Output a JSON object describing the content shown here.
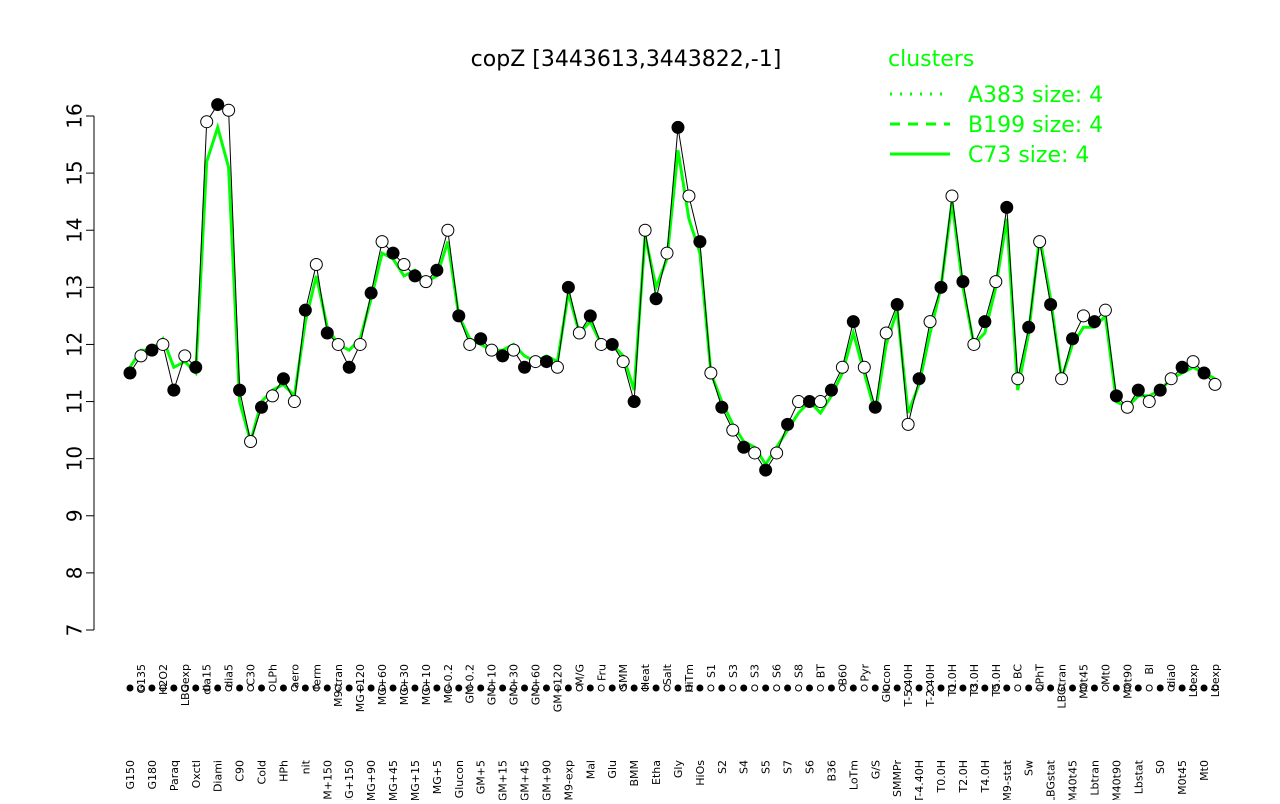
{
  "chart_data": {
    "type": "line",
    "title": "copZ [3443613,3443822,-1]",
    "xlabel": "",
    "ylabel": "",
    "ylim": [
      7,
      16.5
    ],
    "y_ticks": [
      7,
      8,
      9,
      10,
      11,
      12,
      13,
      14,
      15,
      16
    ],
    "grid": false,
    "legend": {
      "title": "clusters",
      "placement": "top-right",
      "color": "#00ff00",
      "entries": [
        {
          "label": "A383 size: 4",
          "style": "dotted"
        },
        {
          "label": "B199 size: 4",
          "style": "dashed"
        },
        {
          "label": "C73 size: 4",
          "style": "solid"
        }
      ]
    },
    "x_tick_labels": [
      "G150",
      "G135",
      "G180",
      "H2O2",
      "Paraq",
      "LBGexp",
      "Oxctl",
      "dia15",
      "Diami",
      "dia5",
      "C90",
      "C30",
      "Cold",
      "LPh",
      "HPh",
      "aero",
      "nit",
      "ferm",
      "GM+150",
      "M9-tran",
      "MG+150",
      "MG+120",
      "MG+90",
      "MG+60",
      "MG+45",
      "MG+30",
      "MG+15",
      "MG+10",
      "MG+5",
      "MG-0.2",
      "Glucon",
      "GM-0.2",
      "GM+5",
      "GM+10",
      "GM+15",
      "GM+30",
      "GM+45",
      "GM+60",
      "GM+90",
      "GM+120",
      "M9-exp",
      "M/G",
      "Mal",
      "Fru",
      "Glu",
      "SMM",
      "BMM",
      "Heat",
      "Etha",
      "Salt",
      "Gly",
      "HiTm",
      "HiOs",
      "S1",
      "S2",
      "S3",
      "S4",
      "S3",
      "S5",
      "S6",
      "S7",
      "S8",
      "S6",
      "BT",
      "B36",
      "B60",
      "LoTm",
      "Pyr",
      "G/S",
      "Glucon",
      "SMMPr",
      "T-5.40H",
      "T-4.40H",
      "T-2.40H",
      "T0.0H",
      "T1.0H",
      "T2.0H",
      "T3.0H",
      "T4.0H",
      "T5.0H",
      "M9-stat",
      "BC",
      "Sw",
      "LPhT",
      "LBGstat",
      "LBGtran",
      "M40t45",
      "M0t45",
      "Lbtran",
      "Mt0",
      "M40t90",
      "M0t90",
      "Lbstat",
      "Bl",
      "S0",
      "dia0",
      "M0t45",
      "Lbexp",
      "Mt0",
      "Lbexp"
    ],
    "x": [
      1,
      2,
      3,
      4,
      5,
      6,
      7,
      8,
      9,
      10,
      11,
      12,
      13,
      14,
      15,
      16,
      17,
      18,
      19,
      20,
      21,
      22,
      23,
      24,
      25,
      26,
      27,
      28,
      29,
      30,
      31,
      32,
      33,
      34,
      35,
      36,
      37,
      38,
      39,
      40,
      41,
      42,
      43,
      44,
      45,
      46,
      47,
      48,
      49,
      50,
      51,
      52,
      53,
      54,
      55,
      56,
      57,
      58,
      59,
      60,
      61,
      62,
      63,
      64,
      65,
      66,
      67,
      68,
      69,
      70,
      71,
      72,
      73,
      74,
      75,
      76,
      77,
      78,
      79,
      80,
      81,
      82,
      83,
      84,
      85,
      86,
      87,
      88,
      89,
      90,
      91,
      92,
      93,
      94,
      95,
      96,
      97,
      98,
      99,
      100
    ],
    "series": [
      {
        "color": "#00ff00",
        "values": [
          11.6,
          11.9,
          11.9,
          12.1,
          11.6,
          11.7,
          11.5,
          15.2,
          15.8,
          15.1,
          11.0,
          10.3,
          11.0,
          11.2,
          11.3,
          11.1,
          12.4,
          13.2,
          12.3,
          12.0,
          11.9,
          12.1,
          12.8,
          13.6,
          13.5,
          13.2,
          13.3,
          13.1,
          13.2,
          13.8,
          12.5,
          12.1,
          12.0,
          11.9,
          11.9,
          12.0,
          11.8,
          11.7,
          11.8,
          11.7,
          12.9,
          12.2,
          12.4,
          12.0,
          12.0,
          11.8,
          11.2,
          13.9,
          13.0,
          13.5,
          15.4,
          14.2,
          13.6,
          11.5,
          11.0,
          10.6,
          10.3,
          10.2,
          9.9,
          10.2,
          10.5,
          10.8,
          11.0,
          10.8,
          11.1,
          11.5,
          12.2,
          11.5,
          10.8,
          12.0,
          12.6,
          10.8,
          11.3,
          12.2,
          13.0,
          14.5,
          13.0,
          12.0,
          12.2,
          13.0,
          14.2,
          11.2,
          12.2,
          13.9,
          12.8,
          11.4,
          12.0,
          12.3,
          12.3,
          12.5,
          11.0,
          10.9,
          11.1,
          11.1,
          11.2,
          11.4,
          11.5,
          11.6,
          11.5,
          11.4
        ]
      },
      {
        "color": "#000000",
        "values": [
          11.5,
          11.8,
          11.9,
          12.0,
          11.2,
          11.8,
          11.6,
          15.9,
          16.2,
          16.1,
          11.2,
          10.3,
          10.9,
          11.1,
          11.4,
          11.0,
          12.6,
          13.4,
          12.2,
          12.0,
          11.6,
          12.0,
          12.9,
          13.8,
          13.6,
          13.4,
          13.2,
          13.1,
          13.3,
          14.0,
          12.5,
          12.0,
          12.1,
          11.9,
          11.8,
          11.9,
          11.6,
          11.7,
          11.7,
          11.6,
          13.0,
          12.2,
          12.5,
          12.0,
          12.0,
          11.7,
          11.0,
          14.0,
          12.8,
          13.6,
          15.8,
          14.6,
          13.8,
          11.5,
          10.9,
          10.5,
          10.2,
          10.1,
          9.8,
          10.1,
          10.6,
          11.0,
          11.0,
          11.0,
          11.2,
          11.6,
          12.4,
          11.6,
          10.9,
          12.2,
          12.7,
          10.6,
          11.4,
          12.4,
          13.0,
          14.6,
          13.1,
          12.0,
          12.4,
          13.1,
          14.4,
          11.4,
          12.3,
          13.8,
          12.7,
          11.4,
          12.1,
          12.5,
          12.4,
          12.6,
          11.1,
          10.9,
          11.2,
          11.0,
          11.2,
          11.4,
          11.6,
          11.7,
          11.5,
          11.3
        ]
      }
    ],
    "markers": "filled and open circles on series values"
  }
}
